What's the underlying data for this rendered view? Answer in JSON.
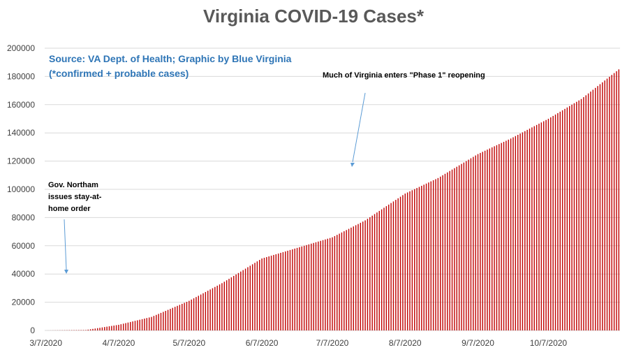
{
  "title": "Virginia COVID-19 Cases*",
  "source_line1": "Source: VA Dept. of Health; Graphic by Blue Virginia",
  "source_line2": "(*confirmed + probable cases)",
  "annotations": {
    "phase1": "Much of Virginia enters \"Phase 1\" reopening",
    "stay_home_1": "Gov. Northam",
    "stay_home_2": "issues stay-at-",
    "stay_home_3": "home order"
  },
  "colors": {
    "bar": "#c00000",
    "grid": "#d9d9d9",
    "arrow": "#5b9bd5",
    "axis_text": "#404040"
  },
  "chart_data": {
    "type": "bar",
    "title": "Virginia COVID-19 Cases*",
    "x_start": "2020-03-07",
    "x_end": "2020-11-06",
    "x_tick_labels": [
      "3/7/2020",
      "4/7/2020",
      "5/7/2020",
      "6/7/2020",
      "7/7/2020",
      "8/7/2020",
      "9/7/2020",
      "10/7/2020"
    ],
    "x_tick_dates": [
      "2020-03-07",
      "2020-04-07",
      "2020-05-07",
      "2020-06-07",
      "2020-07-07",
      "2020-08-07",
      "2020-09-07",
      "2020-10-07"
    ],
    "ylim": [
      0,
      200000
    ],
    "y_ticks": [
      0,
      20000,
      40000,
      60000,
      80000,
      100000,
      120000,
      140000,
      160000,
      180000,
      200000
    ],
    "grid": true,
    "series": [
      {
        "name": "",
        "points": [
          [
            "2020-03-07",
            0
          ],
          [
            "2020-03-24",
            300
          ],
          [
            "2020-04-07",
            4000
          ],
          [
            "2020-04-21",
            9600
          ],
          [
            "2020-05-07",
            21000
          ],
          [
            "2020-05-21",
            33500
          ],
          [
            "2020-06-07",
            51000
          ],
          [
            "2020-06-21",
            58000
          ],
          [
            "2020-07-07",
            66000
          ],
          [
            "2020-07-21",
            78000
          ],
          [
            "2020-08-07",
            97000
          ],
          [
            "2020-08-21",
            108000
          ],
          [
            "2020-09-07",
            125000
          ],
          [
            "2020-09-21",
            136000
          ],
          [
            "2020-10-07",
            150000
          ],
          [
            "2020-10-21",
            164000
          ],
          [
            "2020-11-06",
            185000
          ]
        ]
      }
    ]
  }
}
